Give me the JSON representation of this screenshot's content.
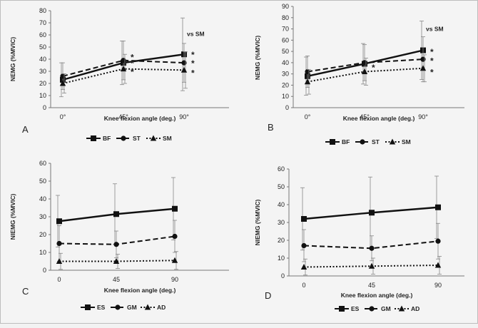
{
  "chart_data": [
    {
      "type": "line",
      "panel_label": "A",
      "categories": [
        "0°",
        "45°",
        "90°"
      ],
      "xlabel": "Knee flexion angle (deg.)",
      "ylabel": "NEMG (%MVIC)",
      "ylim": [
        0,
        80
      ],
      "yticks": [
        "0",
        "10",
        "20",
        "30",
        "40",
        "50",
        "60",
        "70",
        "80"
      ],
      "series": [
        {
          "name": "BF",
          "values": [
            23,
            37,
            44
          ],
          "errors": [
            14,
            18,
            30
          ],
          "style": "solid",
          "marker": "square"
        },
        {
          "name": "ST",
          "values": [
            26,
            39,
            37
          ],
          "errors": [
            11,
            16,
            16
          ],
          "style": "dashed",
          "marker": "circle"
        },
        {
          "name": "SM",
          "values": [
            20,
            32,
            31
          ],
          "errors": [
            8,
            12,
            15
          ],
          "style": "dotted",
          "marker": "triangle"
        }
      ],
      "annotations": [
        {
          "text": "vs SM",
          "at": [
            2,
            59
          ]
        },
        {
          "text": "*",
          "at": [
            1,
            42
          ]
        },
        {
          "text": "*",
          "at": [
            1,
            37
          ]
        },
        {
          "text": "*",
          "at": [
            1,
            30
          ]
        },
        {
          "text": "*",
          "at": [
            2,
            44
          ]
        },
        {
          "text": "*",
          "at": [
            2,
            37
          ]
        },
        {
          "text": "*",
          "at": [
            2,
            29
          ]
        }
      ]
    },
    {
      "type": "line",
      "panel_label": "B",
      "categories": [
        "0°",
        "45°",
        "90°"
      ],
      "xlabel": "Knee flexion angle (deg.)",
      "ylabel": "NEMG (%MVIC)",
      "ylim": [
        0,
        90
      ],
      "yticks": [
        "0",
        "10",
        "20",
        "30",
        "40",
        "50",
        "60",
        "70",
        "80",
        "90"
      ],
      "series": [
        {
          "name": "BF",
          "values": [
            28,
            39,
            51
          ],
          "errors": [
            17,
            18,
            26
          ],
          "style": "solid",
          "marker": "square"
        },
        {
          "name": "ST",
          "values": [
            32,
            40,
            43
          ],
          "errors": [
            14,
            16,
            20
          ],
          "style": "dashed",
          "marker": "circle"
        },
        {
          "name": "SM",
          "values": [
            23,
            32,
            35
          ],
          "errors": [
            11,
            12,
            12
          ],
          "style": "dotted",
          "marker": "triangle"
        }
      ],
      "annotations": [
        {
          "text": "vs SM",
          "at": [
            2,
            68
          ]
        },
        {
          "text": "*",
          "at": [
            1,
            36
          ]
        },
        {
          "text": "*",
          "at": [
            2,
            50
          ]
        },
        {
          "text": "*",
          "at": [
            2,
            42
          ]
        },
        {
          "text": "*",
          "at": [
            2,
            32
          ]
        }
      ]
    },
    {
      "type": "line",
      "panel_label": "C",
      "categories": [
        "0",
        "45",
        "90"
      ],
      "xlabel": "Knee flexion angle (deg.)",
      "ylabel": "NIEMG (%MVIC)",
      "ylim": [
        0,
        60
      ],
      "yticks": [
        "0",
        "10",
        "20",
        "30",
        "40",
        "50",
        "60"
      ],
      "series": [
        {
          "name": "ES",
          "values": [
            27.5,
            31.5,
            34.5
          ],
          "errors": [
            14.5,
            17,
            17.5
          ],
          "style": "solid",
          "marker": "square"
        },
        {
          "name": "GM",
          "values": [
            15,
            14.5,
            19
          ],
          "errors": [
            10,
            7.5,
            9
          ],
          "style": "dashed",
          "marker": "circle"
        },
        {
          "name": "AD",
          "values": [
            5,
            5,
            5.5
          ],
          "errors": [
            4.5,
            4,
            5
          ],
          "style": "dotted",
          "marker": "triangle"
        }
      ],
      "annotations": []
    },
    {
      "type": "line",
      "panel_label": "D",
      "categories": [
        "0",
        "45",
        "90"
      ],
      "xlabel": "Knee flexion angle (deg.)",
      "ylabel": "NIEMG (%MVIC)",
      "ylim": [
        0,
        60
      ],
      "yticks": [
        "0",
        "10",
        "20",
        "30",
        "40",
        "50",
        "60"
      ],
      "series": [
        {
          "name": "ES",
          "values": [
            32,
            35.5,
            38.5
          ],
          "errors": [
            17.5,
            20,
            17.5
          ],
          "style": "solid",
          "marker": "square"
        },
        {
          "name": "GM",
          "values": [
            17,
            15.5,
            19.5
          ],
          "errors": [
            9,
            7,
            10
          ],
          "style": "dashed",
          "marker": "circle"
        },
        {
          "name": "AD",
          "values": [
            5,
            5.5,
            6
          ],
          "errors": [
            4.5,
            4.5,
            5
          ],
          "style": "dotted",
          "marker": "triangle"
        }
      ],
      "annotations": []
    }
  ]
}
